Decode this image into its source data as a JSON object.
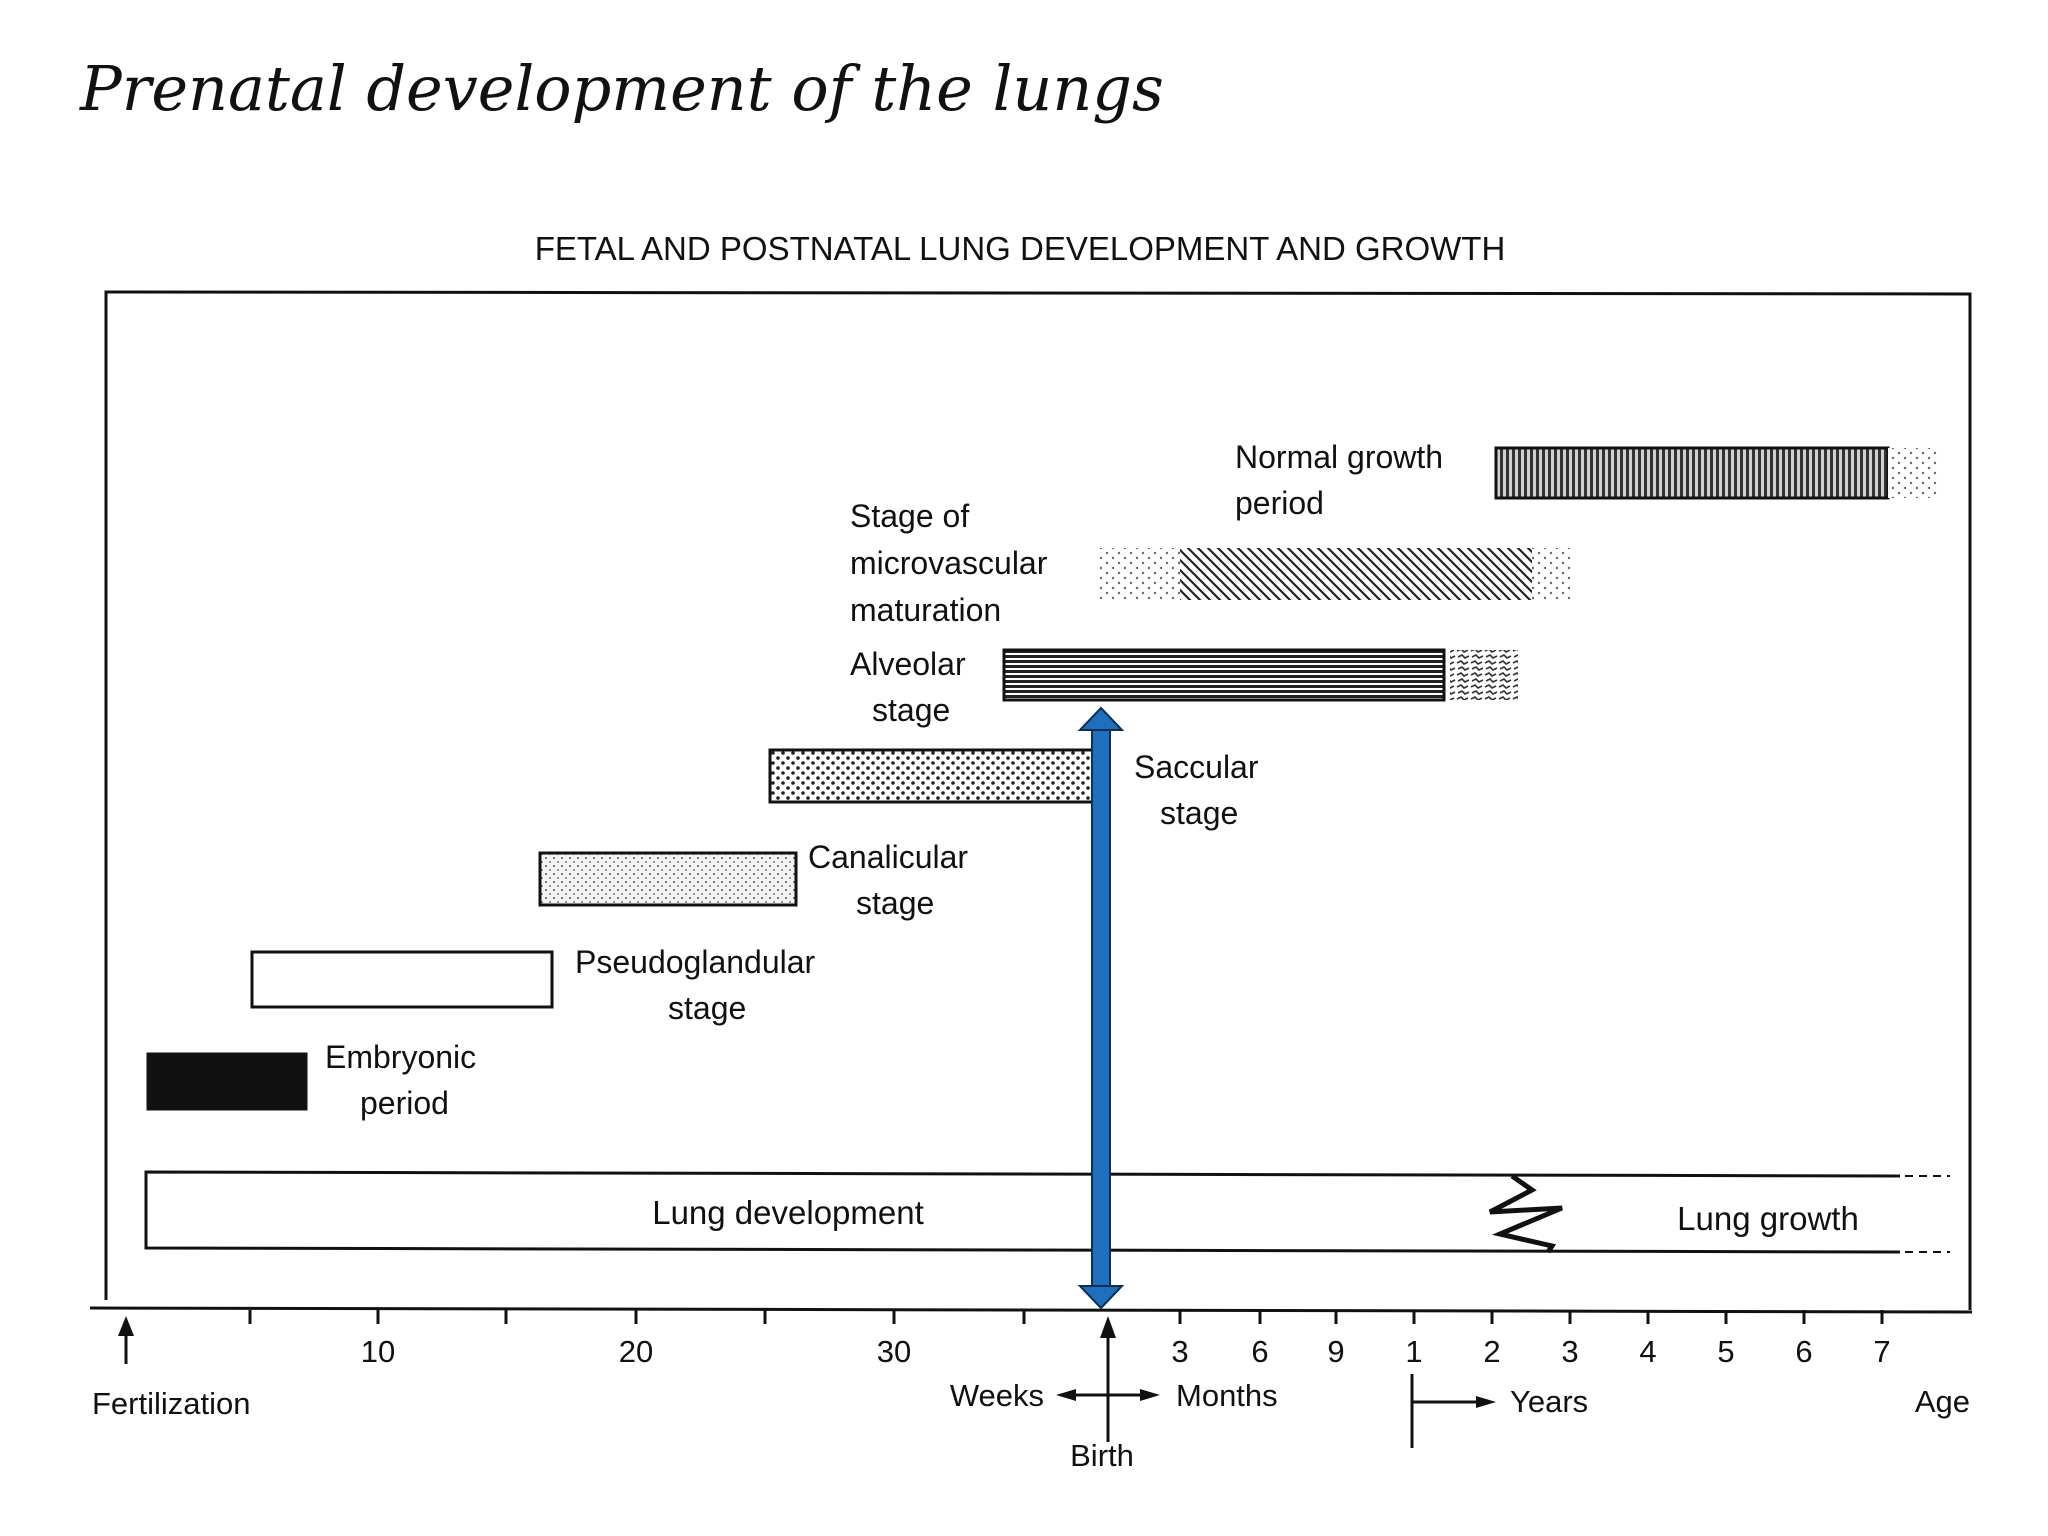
{
  "slide": {
    "title": "Prenatal development of  the lungs"
  },
  "diagram": {
    "title": "FETAL AND POSTNATAL LUNG DEVELOPMENT AND GROWTH",
    "stages": [
      {
        "id": "embryonic",
        "lines": [
          "Embryonic",
          "period"
        ],
        "pattern": "solid-black"
      },
      {
        "id": "pseudoglandular",
        "lines": [
          "Pseudoglandular",
          "stage"
        ],
        "pattern": "blank"
      },
      {
        "id": "canalicular",
        "lines": [
          "Canalicular",
          "stage"
        ],
        "pattern": "fine-stipple"
      },
      {
        "id": "saccular",
        "lines": [
          "Saccular",
          "stage"
        ],
        "pattern": "coarse-dots"
      },
      {
        "id": "alveolar",
        "lines": [
          "Alveolar",
          "stage"
        ],
        "pattern": "horizontal-lines"
      },
      {
        "id": "microvascular",
        "lines": [
          "Stage of",
          "microvascular",
          "maturation"
        ],
        "pattern": "diagonal-hatch"
      },
      {
        "id": "normal-growth",
        "lines": [
          "Normal growth",
          "period"
        ],
        "pattern": "vertical-lines"
      }
    ],
    "band": {
      "development_label": "Lung development",
      "growth_label": "Lung growth"
    },
    "axis": {
      "week_ticks": [
        "10",
        "20",
        "30"
      ],
      "month_ticks": [
        "3",
        "6",
        "9"
      ],
      "year_ticks": [
        "1",
        "2",
        "3",
        "4",
        "5",
        "6",
        "7"
      ],
      "fertilization_label": "Fertilization",
      "weeks_label": "Weeks",
      "months_label": "Months",
      "years_label": "Years",
      "age_label": "Age",
      "birth_label": "Birth"
    },
    "colors": {
      "line": "#111111",
      "birth_arrow": "#1f6fbf",
      "birth_arrow_outline": "#0d2f55"
    }
  }
}
